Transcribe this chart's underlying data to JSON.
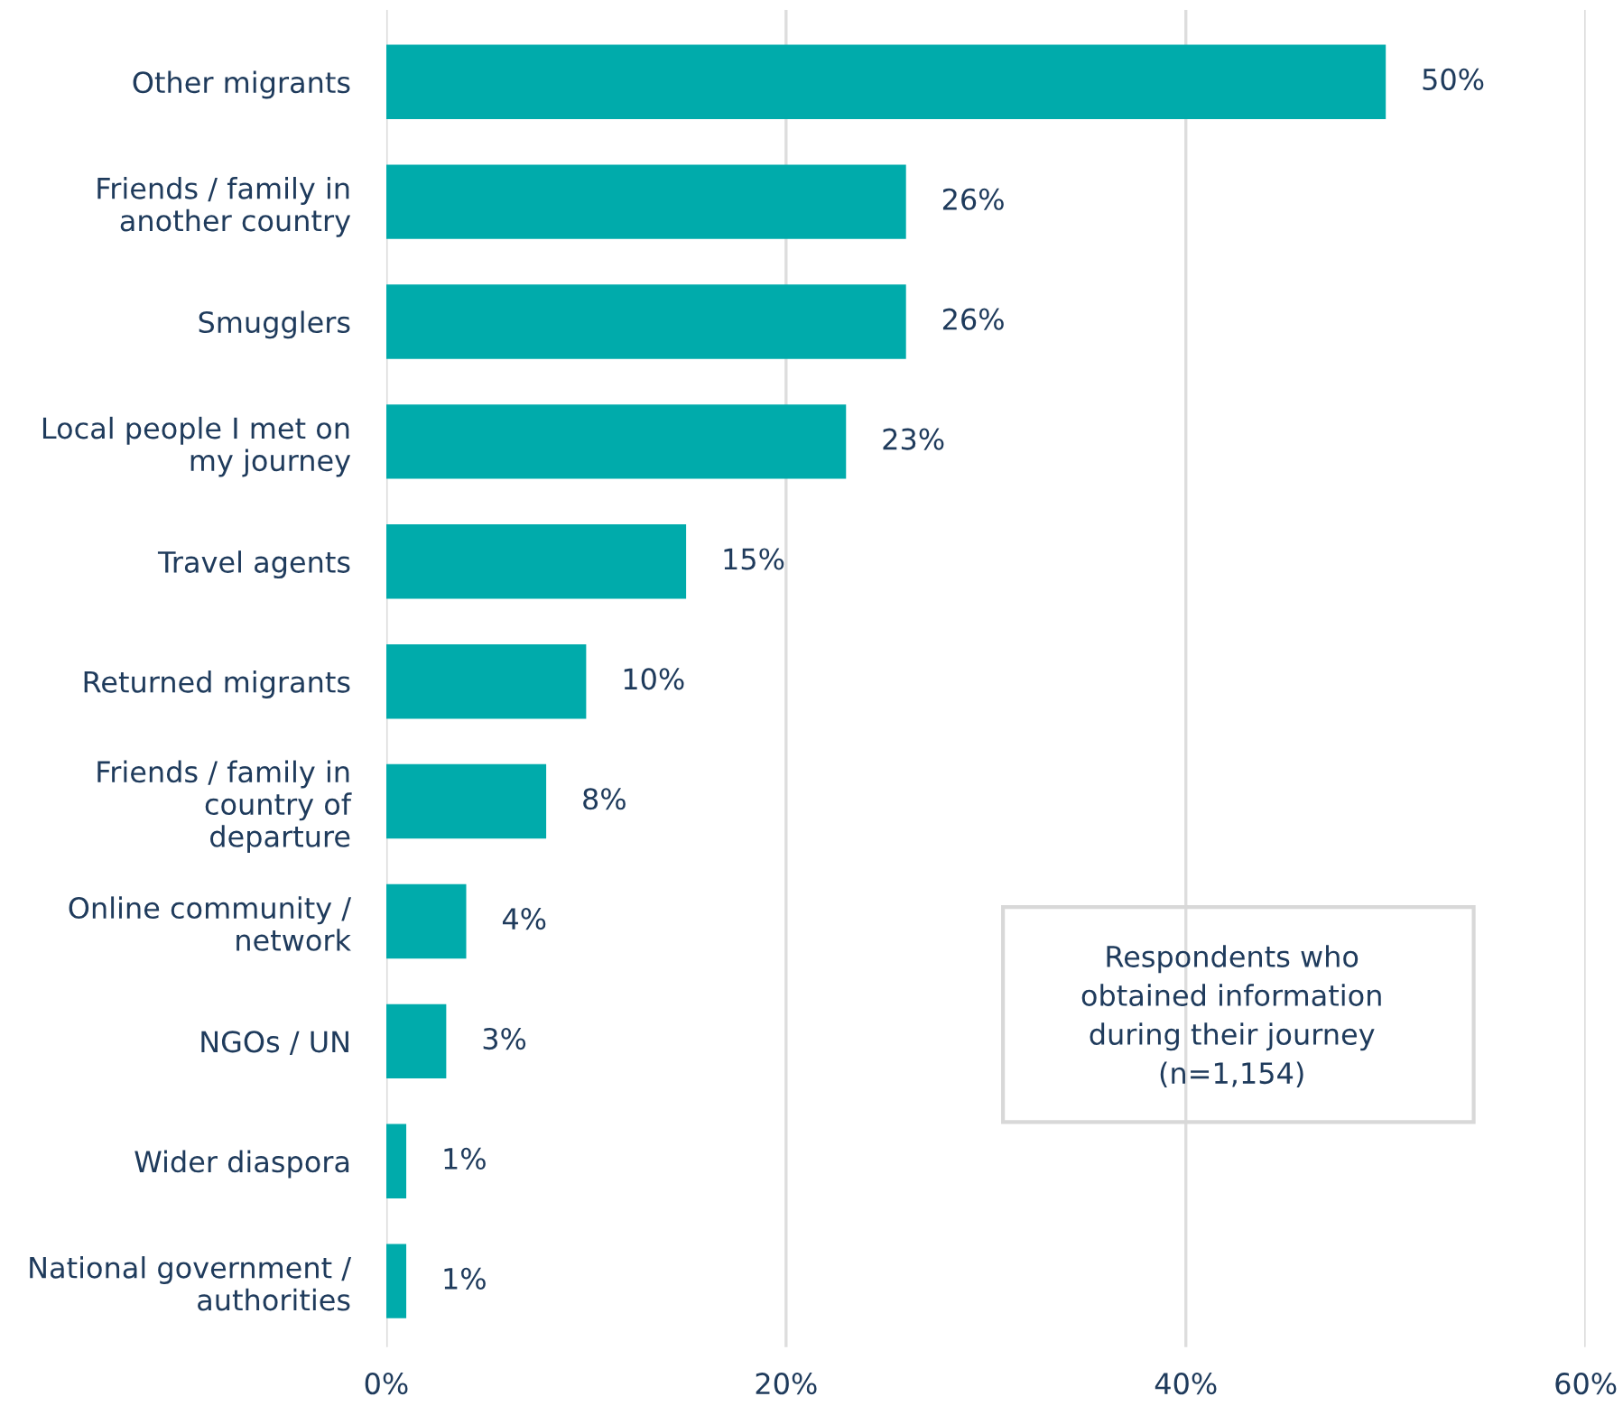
{
  "chart_data": {
    "type": "bar",
    "orientation": "horizontal",
    "categories": [
      "Other migrants",
      "Friends / family in\nanother country",
      "Smugglers",
      "Local people I met on\nmy journey",
      "Travel agents",
      "Returned migrants",
      "Friends / family in\ncountry of\ndeparture",
      "Online community /\nnetwork",
      "NGOs / UN",
      "Wider diaspora",
      "National government /\nauthorities"
    ],
    "values": [
      50,
      26,
      26,
      23,
      15,
      10,
      8,
      4,
      3,
      1,
      1
    ],
    "value_labels": [
      "50%",
      "26%",
      "26%",
      "23%",
      "15%",
      "10%",
      "8%",
      "4%",
      "3%",
      "1%",
      "1%"
    ],
    "color": "#00abab",
    "xlim": [
      0,
      60
    ],
    "xticks": [
      {
        "value": 0,
        "label": "0%"
      },
      {
        "value": 20,
        "label": "20%"
      },
      {
        "value": 40,
        "label": "40%"
      },
      {
        "value": 60,
        "label": "60%"
      }
    ],
    "grid": "x",
    "annotations": [
      "Respondents who\nobtained information\nduring their journey\n(n=1,154)"
    ]
  }
}
